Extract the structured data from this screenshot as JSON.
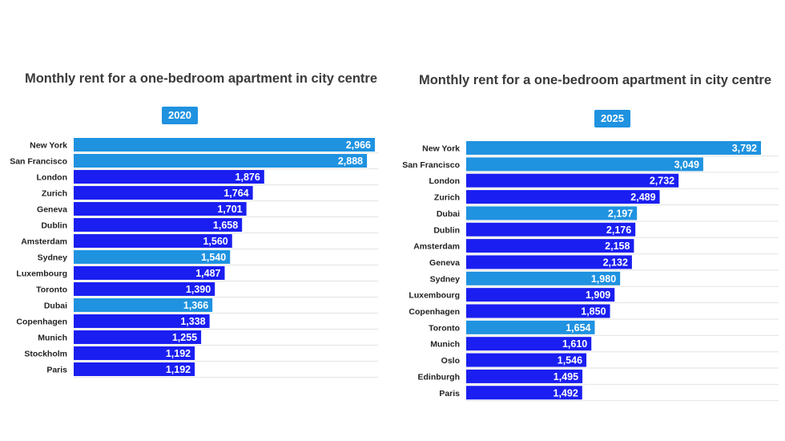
{
  "colors": {
    "primary": "#1a1ef0",
    "highlight": "#1f92e0",
    "title": "#3a3a3a",
    "grid": "#e3e3e3"
  },
  "chart_data": [
    {
      "type": "bar",
      "title": "Monthly rent for a one-bedroom apartment in city centre",
      "badge": "2020",
      "categories": [
        "New York",
        "San Francisco",
        "London",
        "Zurich",
        "Geneva",
        "Dublin",
        "Amsterdam",
        "Sydney",
        "Luxembourg",
        "Toronto",
        "Dubai",
        "Copenhagen",
        "Munich",
        "Stockholm",
        "Paris"
      ],
      "values": [
        2966,
        2888,
        1876,
        1764,
        1701,
        1658,
        1560,
        1540,
        1487,
        1390,
        1366,
        1338,
        1255,
        1192,
        1192
      ],
      "highlighted": [
        "New York",
        "San Francisco",
        "Sydney",
        "Dubai"
      ],
      "value_labels": [
        "2,966",
        "2,888",
        "1,876",
        "1,764",
        "1,701",
        "1,658",
        "1,560",
        "1,540",
        "1,487",
        "1,390",
        "1,366",
        "1,338",
        "1,255",
        "1,192",
        "1,192"
      ],
      "orientation": "horizontal",
      "grid": true
    },
    {
      "type": "bar",
      "title": "Monthly rent for a one-bedroom apartment in city centre",
      "badge": "2025",
      "categories": [
        "New York",
        "San Francisco",
        "London",
        "Zurich",
        "Dubai",
        "Dublin",
        "Amsterdam",
        "Geneva",
        "Sydney",
        "Luxembourg",
        "Copenhagen",
        "Toronto",
        "Munich",
        "Oslo",
        "Edinburgh",
        "Paris"
      ],
      "values": [
        3792,
        3049,
        2732,
        2489,
        2197,
        2176,
        2158,
        2132,
        1980,
        1909,
        1850,
        1654,
        1610,
        1546,
        1495,
        1492
      ],
      "highlighted": [
        "New York",
        "San Francisco",
        "Dubai",
        "Sydney",
        "Toronto"
      ],
      "value_labels": [
        "3,792",
        "3,049",
        "2,732",
        "2,489",
        "2,197",
        "2,176",
        "2,158",
        "2,132",
        "1,980",
        "1,909",
        "1,850",
        "1,654",
        "1,610",
        "1,546",
        "1,495",
        "1,492"
      ],
      "orientation": "horizontal",
      "grid": true
    }
  ]
}
